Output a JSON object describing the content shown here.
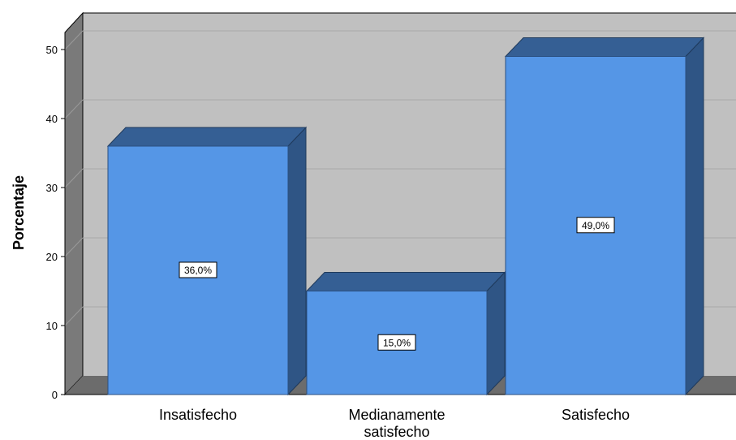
{
  "chart_data": {
    "type": "bar",
    "categories": [
      "Insatisfecho",
      "Medianamente satisfecho",
      "Satisfecho"
    ],
    "category_lines": [
      [
        "Insatisfecho"
      ],
      [
        "Medianamente",
        "satisfecho"
      ],
      [
        "Satisfecho"
      ]
    ],
    "values": [
      36.0,
      15.0,
      49.0
    ],
    "data_labels": [
      "36,0%",
      "15,0%",
      "49,0%"
    ],
    "ylabel": "Porcentaje",
    "xlabel": "",
    "ylim": [
      0,
      50
    ],
    "yticks": [
      "0",
      "10",
      "20",
      "30",
      "40",
      "50"
    ],
    "grid": true,
    "style": "3d",
    "colors": {
      "bar_front": "#5596e6",
      "bar_top": "#355f94",
      "bar_side": "#2f5585",
      "wall": "#c0c0c0",
      "wall_side": "#7a7a7a",
      "floor": "#6c6c6c",
      "gridline": "#a9a9a9"
    }
  }
}
